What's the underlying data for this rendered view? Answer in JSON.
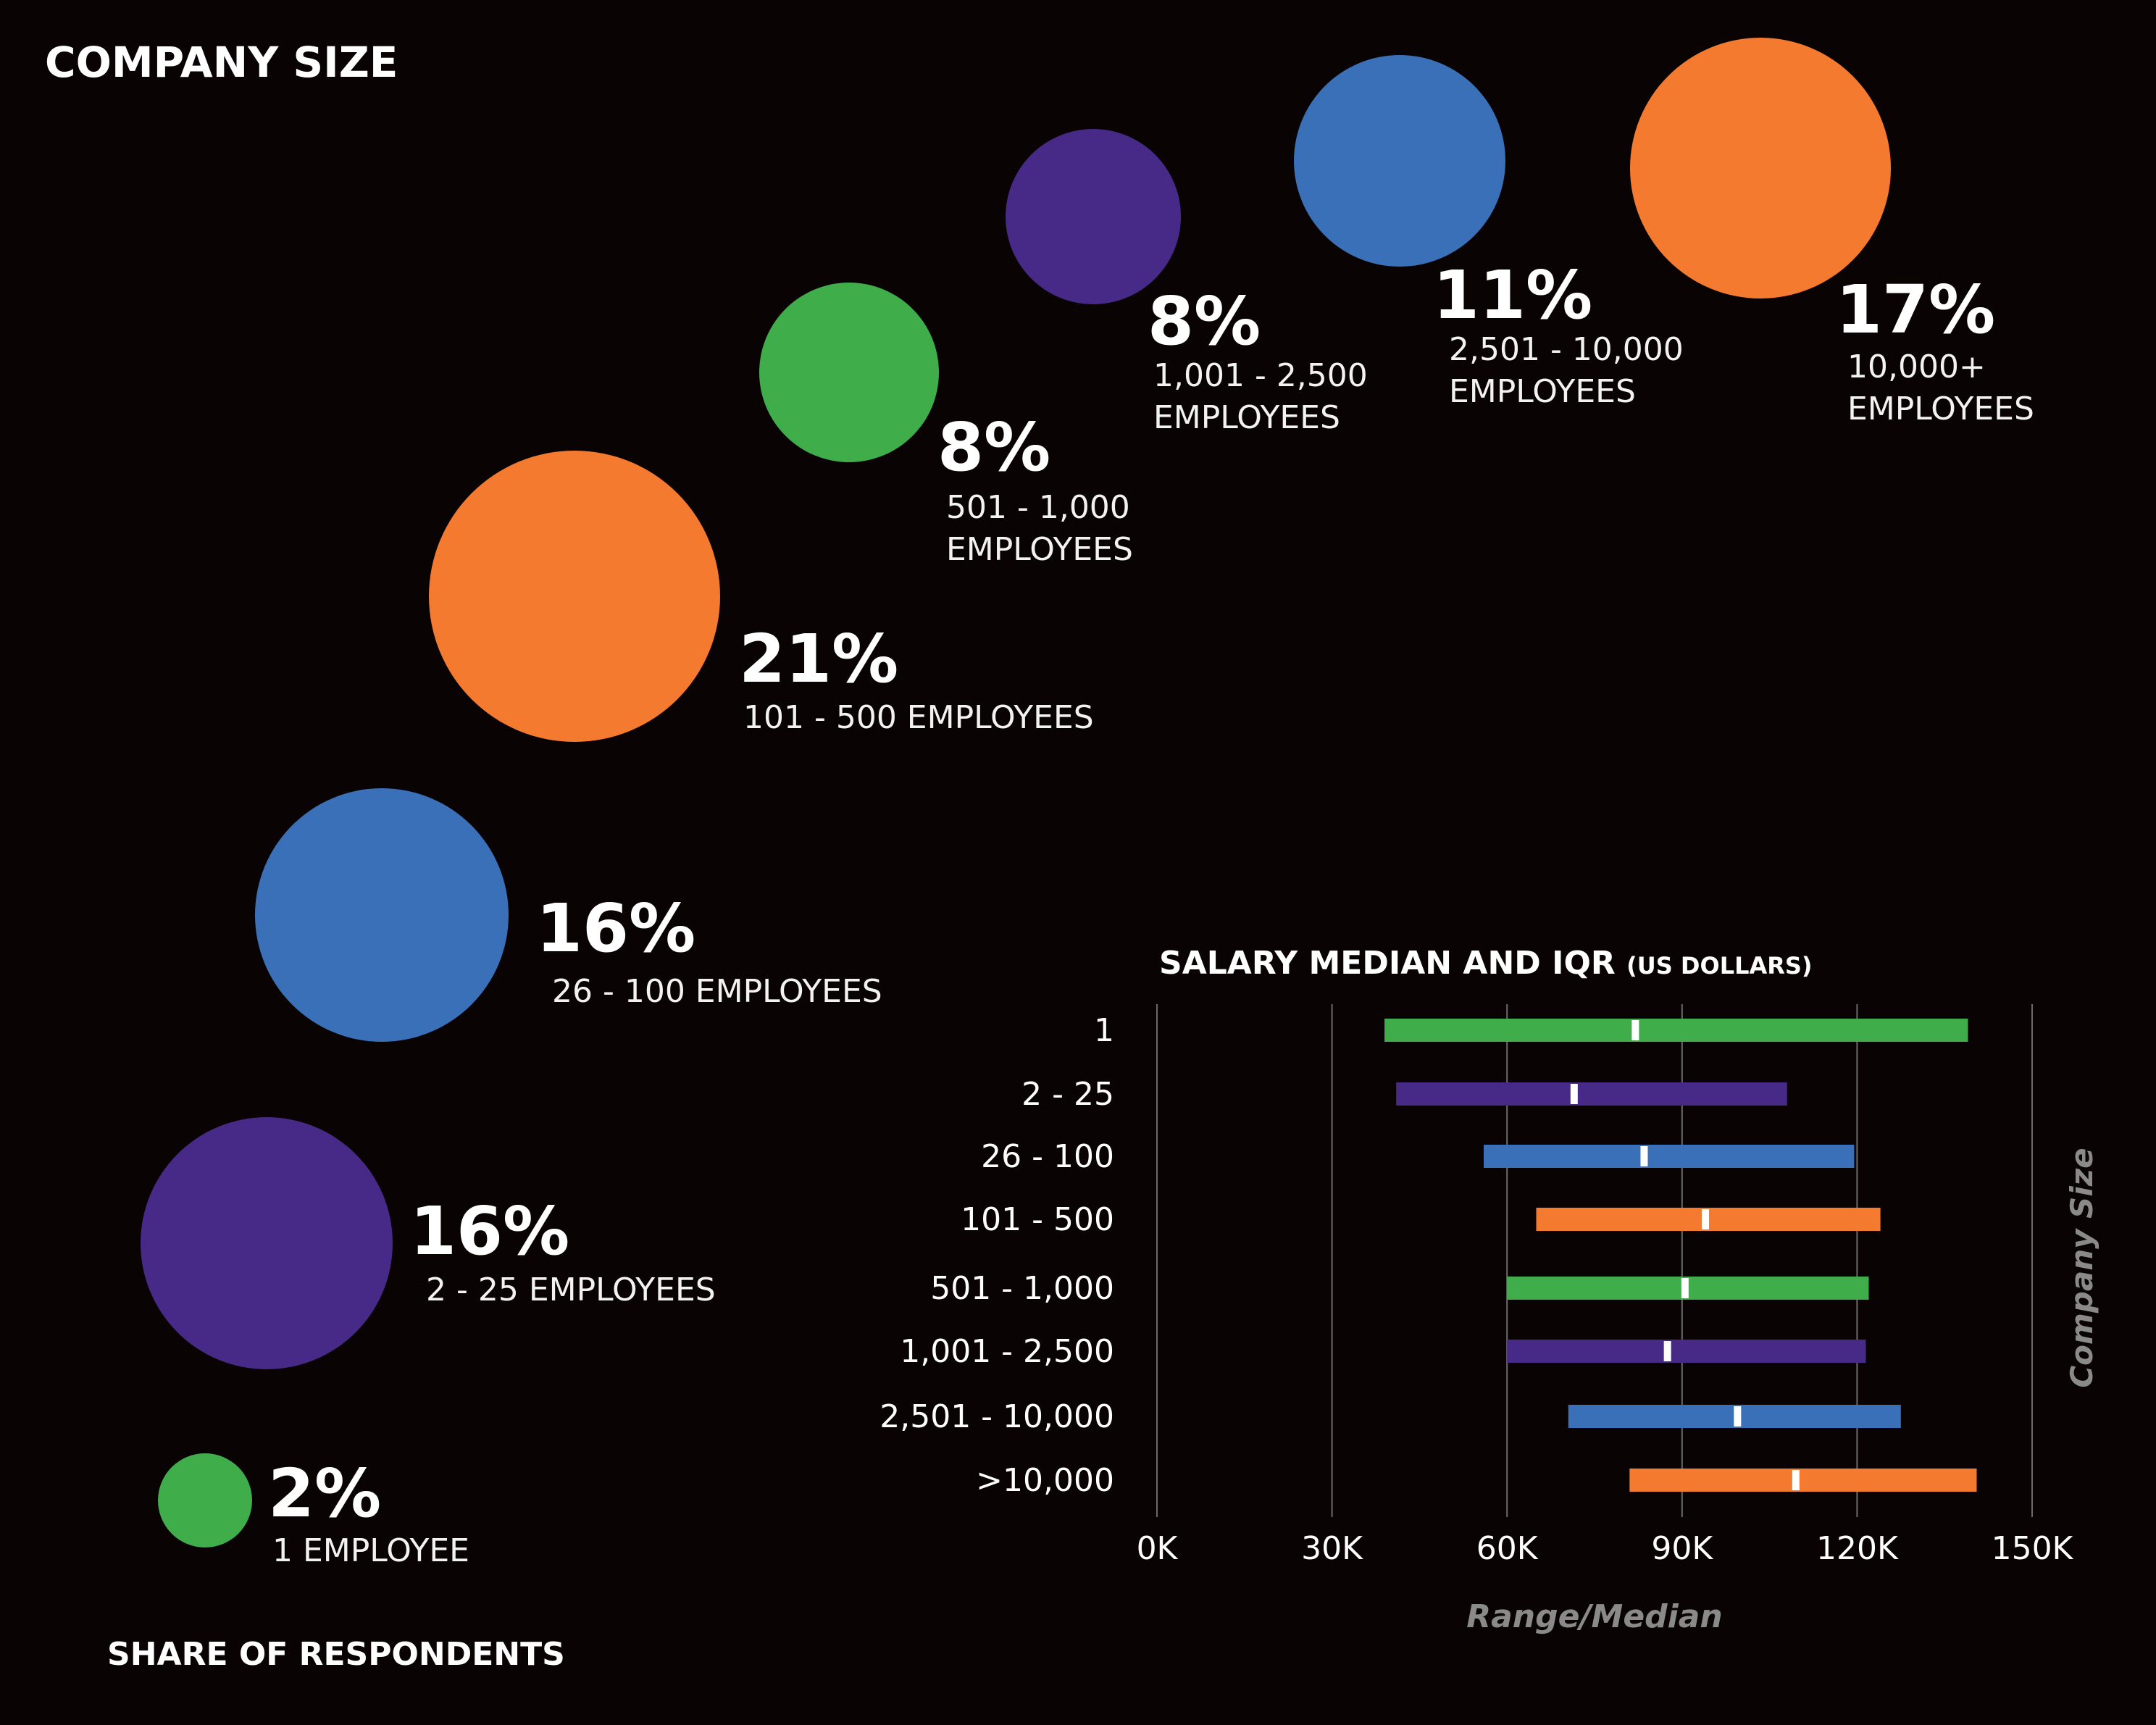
{
  "title": "COMPANY SIZE",
  "share_label": "SHARE OF RESPONDENTS",
  "colors": {
    "green": "#3fae4a",
    "purple": "#472a87",
    "blue": "#3a70b8",
    "orange": "#f37a2e",
    "background": "#0a0304",
    "gridline": "#6b6b6b",
    "axis_label_grey": "#8a8a8a"
  },
  "bubbles": [
    {
      "percent": "2%",
      "line1": "1 EMPLOYEE",
      "line2": "",
      "color": "#3fae4a"
    },
    {
      "percent": "16%",
      "line1": "2 - 25 EMPLOYEES",
      "line2": "",
      "color": "#472a87"
    },
    {
      "percent": "16%",
      "line1": "26 - 100 EMPLOYEES",
      "line2": "",
      "color": "#3a70b8"
    },
    {
      "percent": "21%",
      "line1": "101 - 500 EMPLOYEES",
      "line2": "",
      "color": "#f37a2e"
    },
    {
      "percent": "8%",
      "line1": "501 - 1,000",
      "line2": "EMPLOYEES",
      "color": "#3fae4a"
    },
    {
      "percent": "8%",
      "line1": "1,001 - 2,500",
      "line2": "EMPLOYEES",
      "color": "#472a87"
    },
    {
      "percent": "11%",
      "line1": "2,501 - 10,000",
      "line2": "EMPLOYEES",
      "color": "#3a70b8"
    },
    {
      "percent": "17%",
      "line1": "10,000+",
      "line2": "EMPLOYEES",
      "color": "#f37a2e"
    }
  ],
  "salary_chart": {
    "title_main": "SALARY MEDIAN AND IQR",
    "title_sub": "(US DOLLARS)"
  },
  "chart_data": [
    {
      "type": "bubble",
      "title": "COMPANY SIZE",
      "xlabel": "SHARE OF RESPONDENTS",
      "categories": [
        "1 EMPLOYEE",
        "2 - 25 EMPLOYEES",
        "26 - 100 EMPLOYEES",
        "101 - 500 EMPLOYEES",
        "501 - 1,000 EMPLOYEES",
        "1,001 - 2,500 EMPLOYEES",
        "2,501 - 10,000 EMPLOYEES",
        "10,000+ EMPLOYEES"
      ],
      "values": [
        2,
        16,
        16,
        21,
        8,
        8,
        11,
        17
      ],
      "unit": "%"
    },
    {
      "type": "range",
      "title": "SALARY MEDIAN AND IQR (US DOLLARS)",
      "xlabel": "Range/Median",
      "ylabel": "Company Size",
      "categories": [
        "1",
        "2 - 25",
        "26 - 100",
        "101 - 500",
        "501 - 1,000",
        "1,001 - 2,500",
        "2,501 - 10,000",
        ">10,000"
      ],
      "x_ticks": [
        "0K",
        "30K",
        "60K",
        "90K",
        "120K",
        "150K"
      ],
      "xlim": [
        0,
        150000
      ],
      "grid": true,
      "series": [
        {
          "q1": 39000,
          "median": 82000,
          "q3": 139000,
          "color": "#3fae4a"
        },
        {
          "q1": 41000,
          "median": 71500,
          "q3": 108000,
          "color": "#472a87"
        },
        {
          "q1": 56000,
          "median": 83500,
          "q3": 119500,
          "color": "#3a70b8"
        },
        {
          "q1": 65000,
          "median": 94000,
          "q3": 124000,
          "color": "#f37a2e"
        },
        {
          "q1": 60000,
          "median": 90500,
          "q3": 122000,
          "color": "#3fae4a"
        },
        {
          "q1": 60000,
          "median": 87500,
          "q3": 121500,
          "color": "#472a87"
        },
        {
          "q1": 70500,
          "median": 99500,
          "q3": 127500,
          "color": "#3a70b8"
        },
        {
          "q1": 81000,
          "median": 109500,
          "q3": 140500,
          "color": "#f37a2e"
        }
      ]
    }
  ]
}
